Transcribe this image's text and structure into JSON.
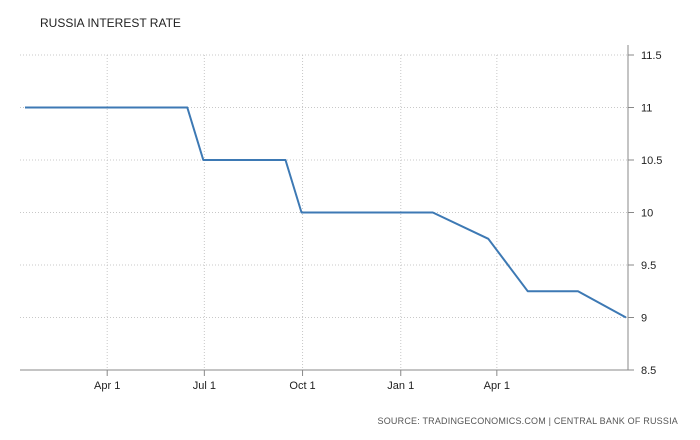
{
  "chart_data": {
    "type": "line",
    "title": "RUSSIA INTEREST RATE",
    "xlabel": "",
    "ylabel": "",
    "x": [
      "2016-01-15",
      "2016-06-15",
      "2016-06-30",
      "2016-09-15",
      "2016-09-30",
      "2017-01-31",
      "2017-03-24",
      "2017-04-30",
      "2017-06-16",
      "2017-07-31"
    ],
    "series": [
      {
        "values": [
          11,
          11,
          10.5,
          10.5,
          10,
          10,
          9.75,
          9.25,
          9.25,
          9
        ]
      }
    ],
    "x_ticks": [
      {
        "label": "Apr 1",
        "date": "2016-04-01"
      },
      {
        "label": "Jul 1",
        "date": "2016-07-01"
      },
      {
        "label": "Oct 1",
        "date": "2016-10-01"
      },
      {
        "label": "Jan 1",
        "date": "2017-01-01"
      },
      {
        "label": "Apr 1",
        "date": "2017-04-01"
      }
    ],
    "y_ticks": [
      "8.5",
      "9",
      "9.5",
      "10",
      "10.5",
      "11",
      "11.5"
    ],
    "ylim": [
      8.5,
      11.5
    ],
    "xlim": [
      "2016-01-15",
      "2017-07-31"
    ],
    "grid": "dotted",
    "legend": "none",
    "line_color": "#3d79b4",
    "source": "SOURCE: TRADINGECONOMICS.COM | CENTRAL BANK OF RUSSIA"
  }
}
